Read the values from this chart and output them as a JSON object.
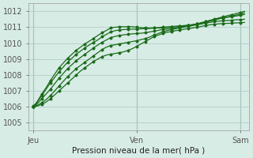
{
  "bg_color": "#d8ece6",
  "grid_color": "#aecfc8",
  "line_color": "#1a6b1a",
  "title": "Pression niveau de la mer( hPa )",
  "xlabel_ticks": [
    "Jeu",
    "Ven",
    "Sam"
  ],
  "xlabel_tick_positions": [
    0,
    24,
    48
  ],
  "ylim": [
    1004.5,
    1012.5
  ],
  "xlim": [
    -1,
    50
  ],
  "yticks": [
    1005,
    1006,
    1007,
    1008,
    1009,
    1010,
    1011,
    1012
  ],
  "series": [
    [
      1006.0,
      1006.05,
      1006.15,
      1006.3,
      1006.5,
      1006.75,
      1007.0,
      1007.25,
      1007.5,
      1007.75,
      1008.0,
      1008.25,
      1008.45,
      1008.65,
      1008.85,
      1009.0,
      1009.15,
      1009.25,
      1009.3,
      1009.35,
      1009.4,
      1009.45,
      1009.55,
      1009.65,
      1009.8,
      1009.95,
      1010.1,
      1010.25,
      1010.4,
      1010.5,
      1010.6,
      1010.68,
      1010.72,
      1010.78,
      1010.82,
      1010.87,
      1010.91,
      1010.95,
      1011.0,
      1011.05,
      1011.1,
      1011.15,
      1011.18,
      1011.21,
      1011.23,
      1011.24,
      1011.25,
      1011.27,
      1011.28,
      1011.3
    ],
    [
      1006.05,
      1006.1,
      1006.25,
      1006.45,
      1006.7,
      1007.0,
      1007.3,
      1007.6,
      1007.9,
      1008.15,
      1008.4,
      1008.6,
      1008.8,
      1009.0,
      1009.2,
      1009.4,
      1009.6,
      1009.75,
      1009.85,
      1009.9,
      1009.95,
      1010.0,
      1010.05,
      1010.1,
      1010.15,
      1010.22,
      1010.28,
      1010.38,
      1010.5,
      1010.6,
      1010.7,
      1010.78,
      1010.84,
      1010.9,
      1010.95,
      1011.0,
      1011.05,
      1011.1,
      1011.15,
      1011.2,
      1011.25,
      1011.3,
      1011.35,
      1011.38,
      1011.4,
      1011.42,
      1011.44,
      1011.46,
      1011.48,
      1011.5
    ],
    [
      1006.0,
      1006.2,
      1006.5,
      1006.8,
      1007.1,
      1007.45,
      1007.8,
      1008.1,
      1008.4,
      1008.65,
      1008.9,
      1009.1,
      1009.3,
      1009.5,
      1009.7,
      1009.88,
      1010.05,
      1010.2,
      1010.35,
      1010.42,
      1010.48,
      1010.52,
      1010.55,
      1010.58,
      1010.6,
      1010.62,
      1010.65,
      1010.7,
      1010.75,
      1010.8,
      1010.85,
      1010.88,
      1010.92,
      1010.95,
      1011.0,
      1011.05,
      1011.1,
      1011.15,
      1011.2,
      1011.28,
      1011.35,
      1011.42,
      1011.48,
      1011.53,
      1011.58,
      1011.62,
      1011.66,
      1011.7,
      1011.75,
      1011.8
    ],
    [
      1006.0,
      1006.3,
      1006.7,
      1007.1,
      1007.5,
      1007.85,
      1008.2,
      1008.5,
      1008.8,
      1009.05,
      1009.3,
      1009.5,
      1009.7,
      1009.88,
      1010.05,
      1010.2,
      1010.4,
      1010.55,
      1010.7,
      1010.78,
      1010.83,
      1010.85,
      1010.87,
      1010.88,
      1010.88,
      1010.9,
      1010.91,
      1010.92,
      1010.95,
      1010.97,
      1011.0,
      1011.02,
      1011.04,
      1011.06,
      1011.08,
      1011.1,
      1011.13,
      1011.16,
      1011.2,
      1011.25,
      1011.3,
      1011.38,
      1011.45,
      1011.52,
      1011.58,
      1011.64,
      1011.7,
      1011.76,
      1011.82,
      1011.9
    ],
    [
      1006.0,
      1006.35,
      1006.8,
      1007.2,
      1007.65,
      1008.05,
      1008.45,
      1008.75,
      1009.05,
      1009.3,
      1009.55,
      1009.75,
      1009.95,
      1010.12,
      1010.3,
      1010.48,
      1010.65,
      1010.8,
      1010.95,
      1011.0,
      1011.02,
      1011.03,
      1011.03,
      1011.03,
      1011.0,
      1010.97,
      1010.95,
      1010.95,
      1010.95,
      1010.95,
      1010.95,
      1010.97,
      1011.0,
      1011.03,
      1011.05,
      1011.08,
      1011.12,
      1011.15,
      1011.2,
      1011.28,
      1011.35,
      1011.43,
      1011.5,
      1011.58,
      1011.65,
      1011.72,
      1011.78,
      1011.85,
      1011.92,
      1012.0
    ]
  ]
}
